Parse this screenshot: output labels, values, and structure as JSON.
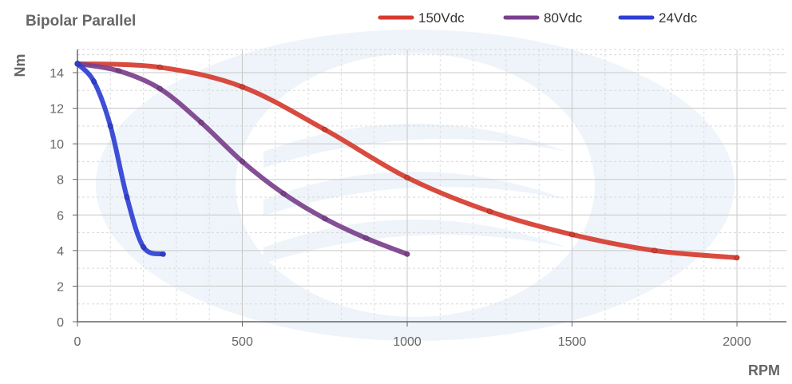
{
  "chart_data": {
    "type": "line",
    "title": "Bipolar Parallel",
    "xlabel": "RPM",
    "ylabel": "Nm",
    "xlim": [
      0,
      2150
    ],
    "ylim": [
      0,
      15.3
    ],
    "xticks": [
      0,
      500,
      1000,
      1500,
      2000
    ],
    "yticks": [
      0,
      2,
      4,
      6,
      8,
      10,
      12,
      14
    ],
    "grid": true,
    "legend_position": "top-right",
    "series": [
      {
        "name": "150Vdc",
        "color": "#d63b2f",
        "x": [
          0,
          250,
          500,
          750,
          1000,
          1250,
          1500,
          1750,
          2000
        ],
        "y": [
          14.5,
          14.3,
          13.2,
          10.8,
          8.1,
          6.2,
          4.9,
          4.0,
          3.6
        ]
      },
      {
        "name": "80Vdc",
        "color": "#7b3f8c",
        "x": [
          0,
          125,
          250,
          375,
          500,
          625,
          750,
          875,
          1000
        ],
        "y": [
          14.5,
          14.1,
          13.1,
          11.2,
          9.0,
          7.2,
          5.8,
          4.7,
          3.8
        ]
      },
      {
        "name": "24Vdc",
        "color": "#2f3fd4",
        "x": [
          0,
          50,
          100,
          150,
          200,
          260
        ],
        "y": [
          14.5,
          13.5,
          11.0,
          7.0,
          4.2,
          3.8
        ]
      }
    ]
  }
}
